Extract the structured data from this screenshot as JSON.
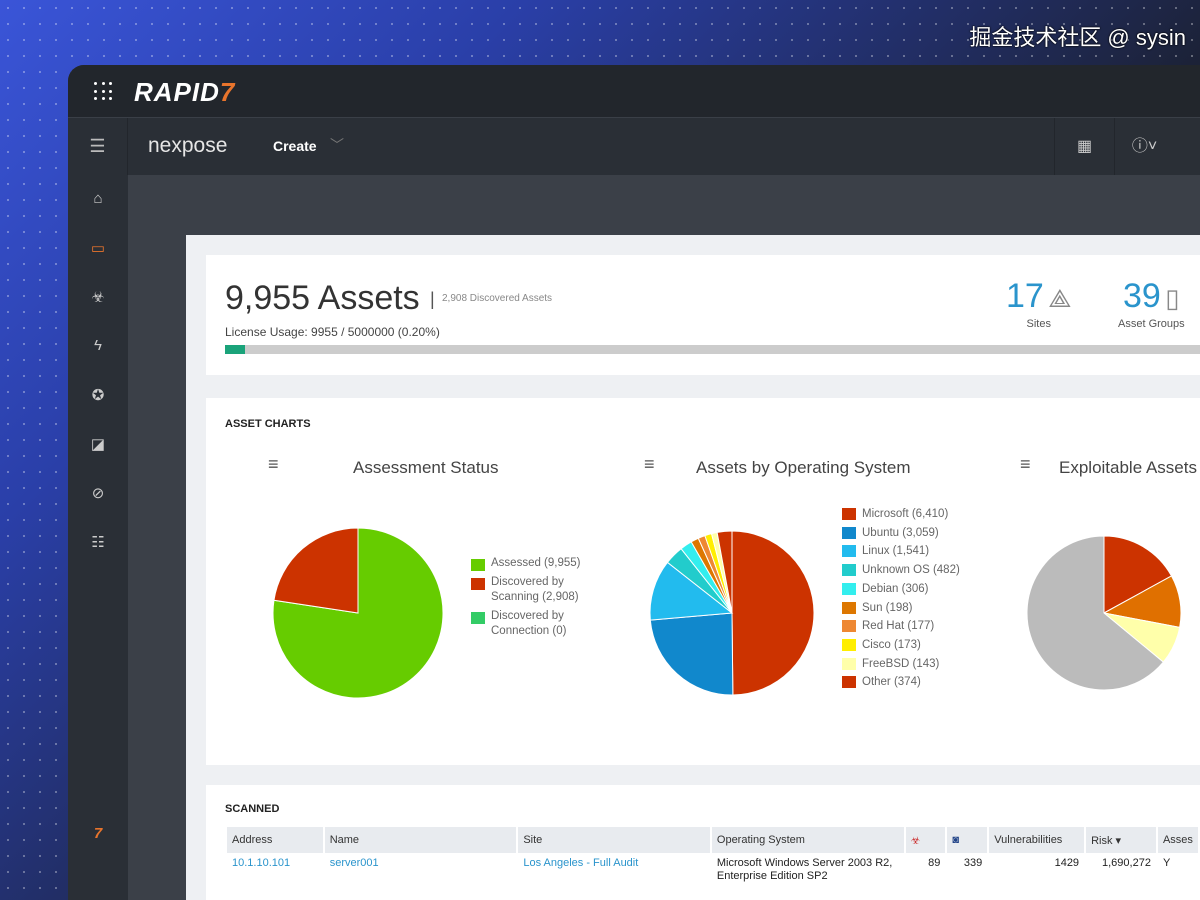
{
  "brand": {
    "name": "RAPID",
    "mark": "7"
  },
  "nav": {
    "product": "nexpose",
    "create": "Create"
  },
  "summary": {
    "assets": "9,955 Assets",
    "discovered": "2,908 Discovered Assets",
    "license": "License Usage: 9955 / 5000000 (0.20%)",
    "license_fraction": 0.002,
    "sites": {
      "value": "17",
      "label": "Sites"
    },
    "groups": {
      "value": "39",
      "label": "Asset Groups"
    }
  },
  "charts_section": "ASSET CHARTS",
  "chart_data": [
    {
      "type": "pie",
      "title": "Assessment Status",
      "slices": [
        {
          "label": "Assessed (9,955)",
          "value": 9955,
          "color": "#66cc00"
        },
        {
          "label": "Discovered by Scanning (2,908)",
          "value": 2908,
          "color": "#cc3300"
        },
        {
          "label": "Discovered by Connection (0)",
          "value": 0,
          "color": "#33cc66"
        }
      ]
    },
    {
      "type": "pie",
      "title": "Assets by Operating System",
      "slices": [
        {
          "label": "Microsoft (6,410)",
          "value": 6410,
          "color": "#cc3300"
        },
        {
          "label": "Ubuntu (3,059)",
          "value": 3059,
          "color": "#1188cc"
        },
        {
          "label": "Linux (1,541)",
          "value": 1541,
          "color": "#22bbee"
        },
        {
          "label": "Unknown OS (482)",
          "value": 482,
          "color": "#22cccc"
        },
        {
          "label": "Debian (306)",
          "value": 306,
          "color": "#33eeee"
        },
        {
          "label": "Sun (198)",
          "value": 198,
          "color": "#dd7700"
        },
        {
          "label": "Red Hat (177)",
          "value": 177,
          "color": "#ee8833"
        },
        {
          "label": "Cisco (173)",
          "value": 173,
          "color": "#ffee00"
        },
        {
          "label": "FreeBSD (143)",
          "value": 143,
          "color": "#ffffaa"
        },
        {
          "label": "Other (374)",
          "value": 374,
          "color": "#cc3300"
        }
      ]
    },
    {
      "type": "pie",
      "title": "Exploitable Assets",
      "slices": [
        {
          "value": 17,
          "color": "#cc3300"
        },
        {
          "value": 11,
          "color": "#e07000"
        },
        {
          "value": 8,
          "color": "#ffffaa"
        },
        {
          "value": 64,
          "color": "#bbbbbb"
        }
      ]
    }
  ],
  "scanned": {
    "title": "SCANNED",
    "columns": [
      "Address",
      "Name",
      "Site",
      "Operating System",
      "",
      "",
      "Vulnerabilities",
      "Risk ▾",
      "Asses"
    ],
    "rows": [
      [
        "10.1.10.101",
        "server001",
        "Los Angeles - Full Audit",
        "Microsoft Windows Server 2003 R2, Enterprise Edition SP2",
        "89",
        "339",
        "1429",
        "1,690,272",
        "Y"
      ]
    ]
  },
  "watermark": "掘金技术社区 @ sysin"
}
